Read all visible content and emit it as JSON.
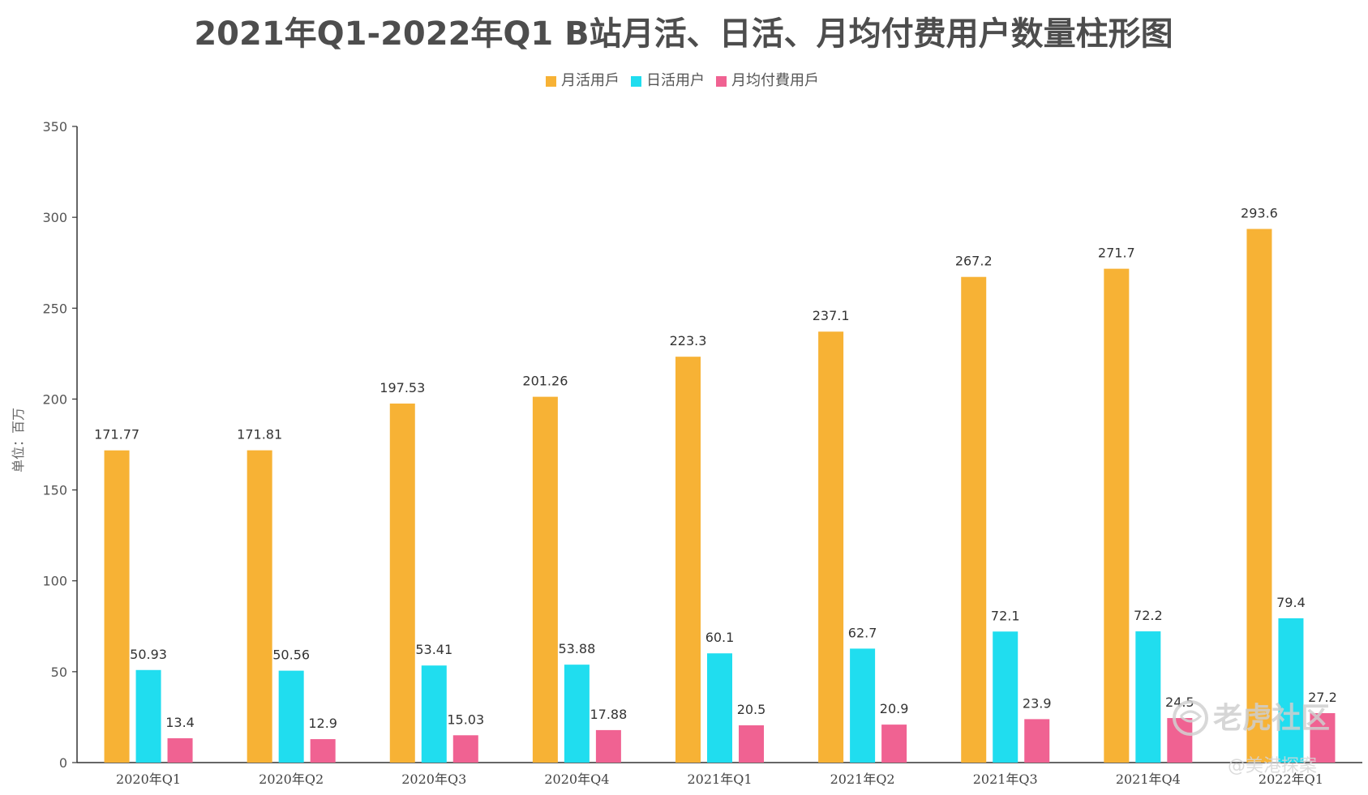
{
  "chart_data": {
    "type": "bar",
    "title": "2021年Q1-2022年Q1 B站月活、日活、月均付费用户数量柱形图",
    "ylabel": "单位：百万",
    "xlabel": "",
    "ylim": [
      0,
      350
    ],
    "yticks": [
      0,
      50,
      100,
      150,
      200,
      250,
      300,
      350
    ],
    "categories": [
      "2020年Q1",
      "2020年Q2",
      "2020年Q3",
      "2020年Q4",
      "2021年Q1",
      "2021年Q2",
      "2021年Q3",
      "2021年Q4",
      "2022年Q1"
    ],
    "series": [
      {
        "name": "月活用戶",
        "color": "#F7B235",
        "values": [
          171.77,
          171.81,
          197.53,
          201.26,
          223.3,
          237.1,
          267.2,
          271.7,
          293.6
        ],
        "labels": [
          "171.77",
          "171.81",
          "197.53",
          "201.26",
          "223.3",
          "237.1",
          "267.2",
          "271.7",
          "293.6"
        ]
      },
      {
        "name": "日活用户",
        "color": "#20DDEF",
        "values": [
          50.93,
          50.56,
          53.41,
          53.88,
          60.1,
          62.7,
          72.1,
          72.2,
          79.4
        ],
        "labels": [
          "50.93",
          "50.56",
          "53.41",
          "53.88",
          "60.1",
          "62.7",
          "72.1",
          "72.2",
          "79.4"
        ]
      },
      {
        "name": "月均付費用戶",
        "color": "#F06292",
        "values": [
          13.4,
          12.9,
          15.03,
          17.88,
          20.5,
          20.9,
          23.9,
          24.5,
          27.2
        ],
        "labels": [
          "13.4",
          "12.9",
          "15.03",
          "17.88",
          "20.5",
          "20.9",
          "23.9",
          "24.5",
          "27.2"
        ]
      }
    ],
    "legend_position": "top-center",
    "grid": false
  },
  "watermark": {
    "brand": "老虎社区",
    "author": "@美港探案"
  }
}
